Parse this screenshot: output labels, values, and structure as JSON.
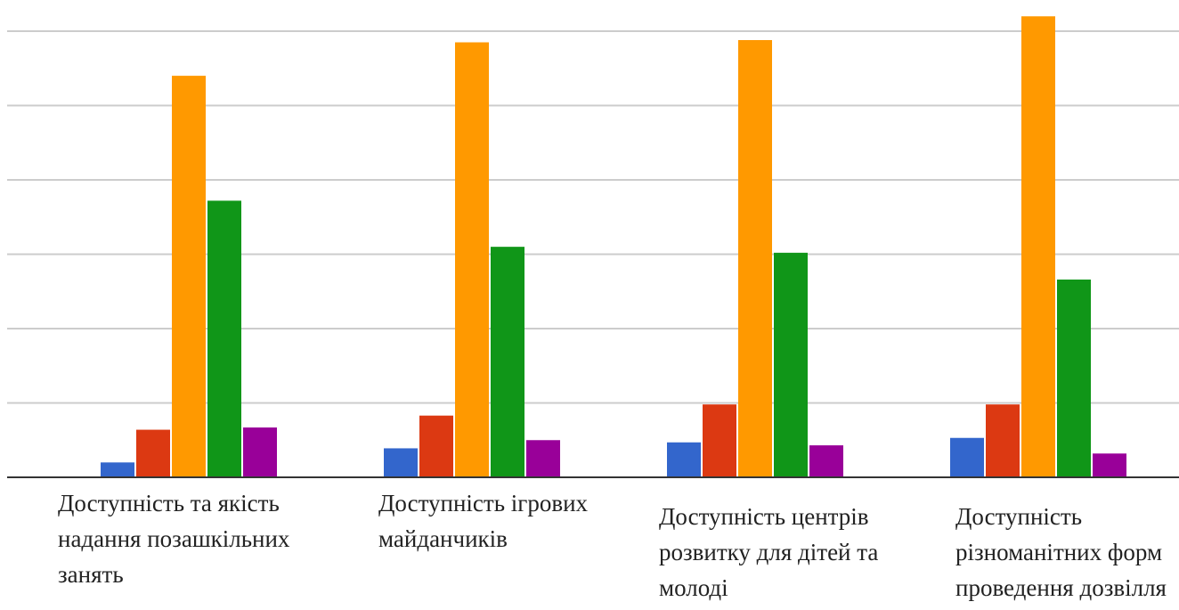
{
  "chart_data": {
    "type": "bar",
    "categories": [
      "Доступність та якість надання позашкільних занять",
      "Доступність ігрових майданчиків",
      "Доступність центрів розвитку для дітей та молоді",
      "Доступність різноманітних форм проведення дозвілля"
    ],
    "series": [
      {
        "color": "#3366cc",
        "values": [
          0.2,
          0.39,
          0.47,
          0.53
        ]
      },
      {
        "color": "#dc3912",
        "values": [
          0.64,
          0.83,
          0.98,
          0.98
        ]
      },
      {
        "color": "#ff9900",
        "values": [
          5.4,
          5.85,
          5.88,
          6.2
        ]
      },
      {
        "color": "#109618",
        "values": [
          3.72,
          3.1,
          3.02,
          2.66
        ]
      },
      {
        "color": "#990099",
        "values": [
          0.67,
          0.5,
          0.43,
          0.32
        ]
      }
    ],
    "ylim": [
      0,
      6
    ],
    "gridlines": [
      1,
      2,
      3,
      4,
      5,
      6
    ],
    "grid": true,
    "legend": "none"
  }
}
